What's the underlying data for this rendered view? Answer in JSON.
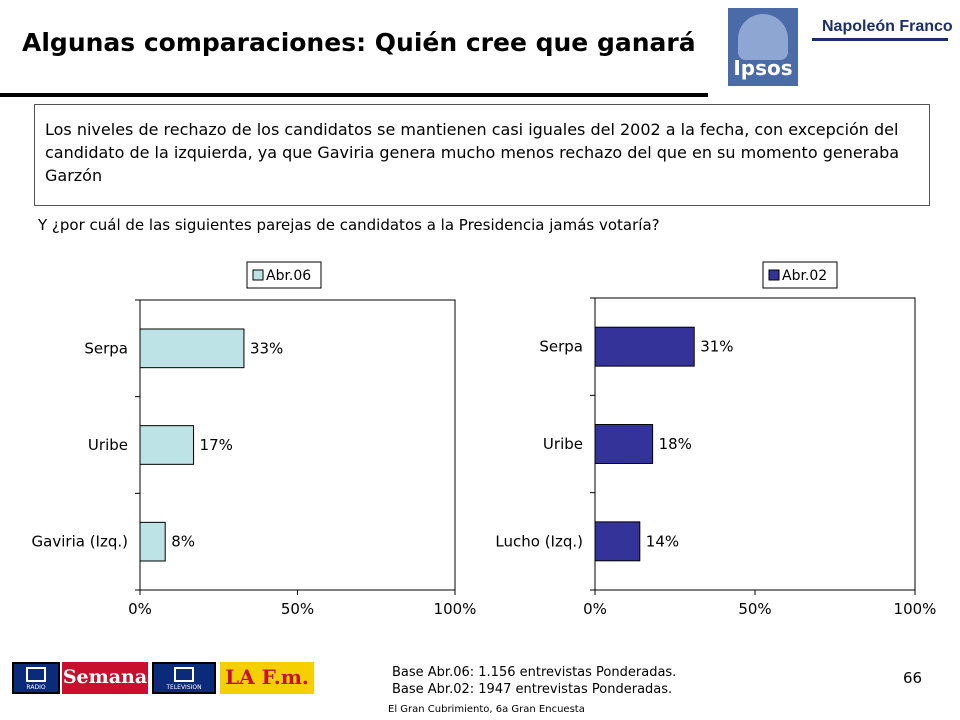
{
  "header": {
    "title": "Algunas comparaciones: Quién cree que ganará"
  },
  "brand": {
    "logo_text": "Ipsos",
    "company": "Napoleón Franco"
  },
  "summary": "Los niveles de rechazo de los candidatos se mantienen casi iguales del 2002 a la fecha, con excepción del candidato de la izquierda, ya que Gaviria genera mucho menos rechazo del que en su momento generaba Garzón",
  "question": "Y ¿por cuál de las siguientes parejas de candidatos a la Presidencia jamás votaría?",
  "chart_data": [
    {
      "type": "bar",
      "orientation": "horizontal",
      "categories": [
        "Serpa",
        "Uribe",
        "Gaviria (Izq.)"
      ],
      "series": [
        {
          "name": "Abr.06",
          "values": [
            33,
            17,
            8
          ],
          "labels": [
            "33%",
            "17%",
            "8%"
          ],
          "color": "#bde3e6"
        }
      ],
      "x_ticks": [
        "0%",
        "50%",
        "100%"
      ],
      "xlim": [
        0,
        100
      ],
      "legend": "top",
      "grid": false
    },
    {
      "type": "bar",
      "orientation": "horizontal",
      "categories": [
        "Serpa",
        "Uribe",
        "Lucho (Izq.)"
      ],
      "series": [
        {
          "name": "Abr.02",
          "values": [
            31,
            18,
            14
          ],
          "labels": [
            "31%",
            "18%",
            "14%"
          ],
          "color": "#333399"
        }
      ],
      "x_ticks": [
        "0%",
        "50%",
        "100%"
      ],
      "xlim": [
        0,
        100
      ],
      "legend": "top",
      "grid": false
    }
  ],
  "footer": {
    "base_1": "Base Abr.06: 1.156 entrevistas Ponderadas.",
    "base_2": "Base Abr.02: 1947 entrevistas Ponderadas.",
    "source": "El Gran Cubrimiento, 6a Gran Encuesta",
    "page_number": "66",
    "logos": {
      "rcn_radio": "RADIO",
      "semana": "Semana",
      "rcn_tv": "TELEVISION",
      "lafm": "LA F.m."
    }
  }
}
